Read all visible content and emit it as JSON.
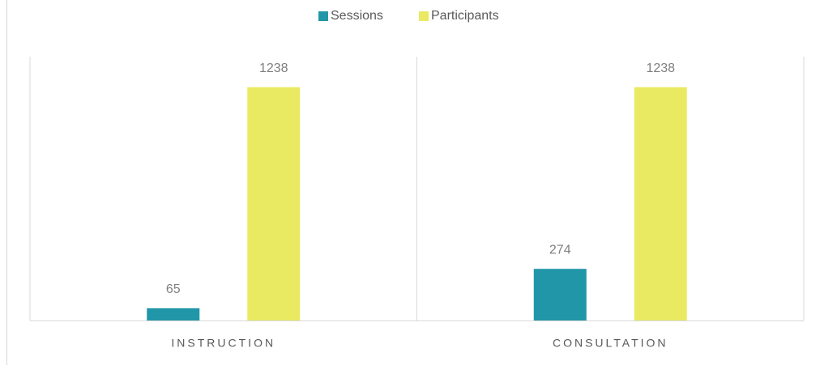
{
  "chart_data": {
    "type": "bar",
    "categories": [
      "INSTRUCTION",
      "CONSULTATION"
    ],
    "series": [
      {
        "name": "Sessions",
        "color": "#2196a8",
        "values": [
          65,
          274
        ]
      },
      {
        "name": "Participants",
        "color": "#eaea62",
        "values": [
          1238,
          1238
        ]
      }
    ],
    "ylim": [
      0,
      1400
    ],
    "legend": "top"
  }
}
